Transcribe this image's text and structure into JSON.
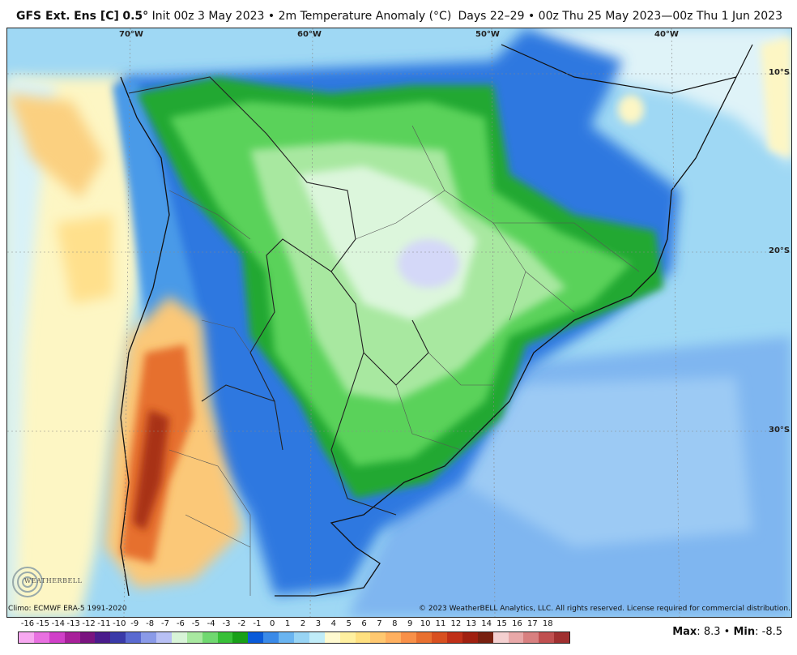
{
  "header": {
    "model": "GFS Ext.",
    "ens": "Ens [C]",
    "resolution": "0.5°",
    "init": "Init 00z 3 May 2023",
    "sep1": "•",
    "field": "2m Temperature Anomaly (°C)",
    "days": "Days 22–29",
    "sep2": "•",
    "range": "00z Thu 25 May 2023—00z Thu 1 Jun 2023"
  },
  "map": {
    "longitude_labels": [
      "70°W",
      "60°W",
      "50°W",
      "40°W"
    ],
    "latitude_labels": [
      "10°S",
      "20°S",
      "30°S"
    ]
  },
  "credits": {
    "climo": "Climo: ECMWF ERA-5 1991-2020",
    "copyright": "© 2023 WeatherBELL Analytics, LLC. All rights reserved. License required for commercial distribution.",
    "logo_text": "WEATHERBELL"
  },
  "colorbar": {
    "labels": [
      "-16",
      "-15",
      "-14",
      "-13",
      "-12",
      "-11",
      "-10",
      "-9",
      "-8",
      "-7",
      "-6",
      "-5",
      "-4",
      "-3",
      "-2",
      "-1",
      "0",
      "1",
      "2",
      "3",
      "4",
      "5",
      "6",
      "7",
      "8",
      "9",
      "10",
      "11",
      "12",
      "13",
      "14",
      "15",
      "16",
      "17",
      "18"
    ],
    "colors": [
      "#f7a8f0",
      "#e870e0",
      "#d040c8",
      "#a8209a",
      "#7a1480",
      "#4a1c8c",
      "#3a3aa8",
      "#5a6ad0",
      "#8a9ae8",
      "#b8c0f4",
      "#d8f4d8",
      "#a8e8a0",
      "#70d870",
      "#38c038",
      "#18a018",
      "#0a5ad8",
      "#3a8ae8",
      "#6ab4f0",
      "#98d4f4",
      "#c0ecf8",
      "#fffad0",
      "#fff0a0",
      "#ffe080",
      "#ffc870",
      "#ffb060",
      "#f89048",
      "#e87030",
      "#d85020",
      "#c03018",
      "#a02010",
      "#782010",
      "#f4d0d0",
      "#e8a8a8",
      "#d88080",
      "#c05050",
      "#a03030"
    ]
  },
  "stats": {
    "max_label": "Max",
    "max_value": "8.3",
    "sep": "•",
    "min_label": "Min",
    "min_value": "-8.5"
  }
}
